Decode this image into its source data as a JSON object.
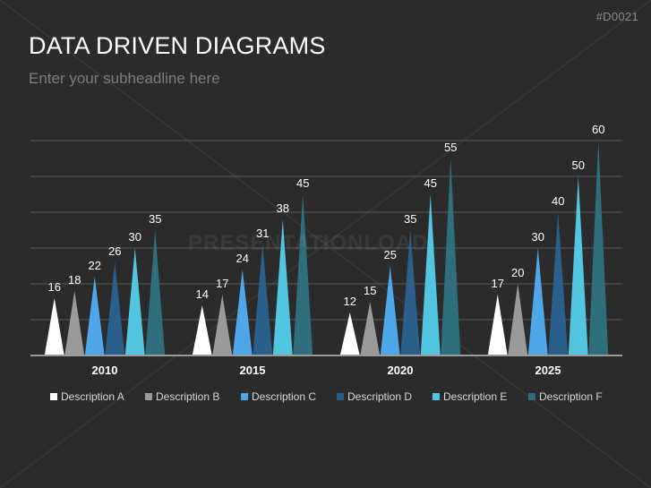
{
  "header": {
    "code": "#D0021",
    "title": "DATA DRIVEN DIAGRAMS",
    "subtitle": "Enter your subheadline here"
  },
  "watermark": "PRESENTATIONLOAD",
  "chart_data": {
    "type": "bar",
    "title": "",
    "xlabel": "",
    "ylabel": "",
    "ylim": [
      0,
      60
    ],
    "grid": true,
    "legend_position": "bottom",
    "categories": [
      "2010",
      "2015",
      "2020",
      "2025"
    ],
    "series": [
      {
        "name": "Description A",
        "color": "#ffffff",
        "values": [
          16,
          14,
          12,
          17
        ]
      },
      {
        "name": "Description B",
        "color": "#9a9a9a",
        "values": [
          18,
          17,
          15,
          20
        ]
      },
      {
        "name": "Description C",
        "color": "#4fa6e8",
        "values": [
          22,
          24,
          25,
          30
        ]
      },
      {
        "name": "Description D",
        "color": "#2a5f8c",
        "values": [
          26,
          31,
          35,
          40
        ]
      },
      {
        "name": "Description E",
        "color": "#52c5e0",
        "values": [
          30,
          38,
          45,
          50
        ]
      },
      {
        "name": "Description F",
        "color": "#2f6e7c",
        "values": [
          35,
          45,
          55,
          60
        ]
      }
    ]
  }
}
